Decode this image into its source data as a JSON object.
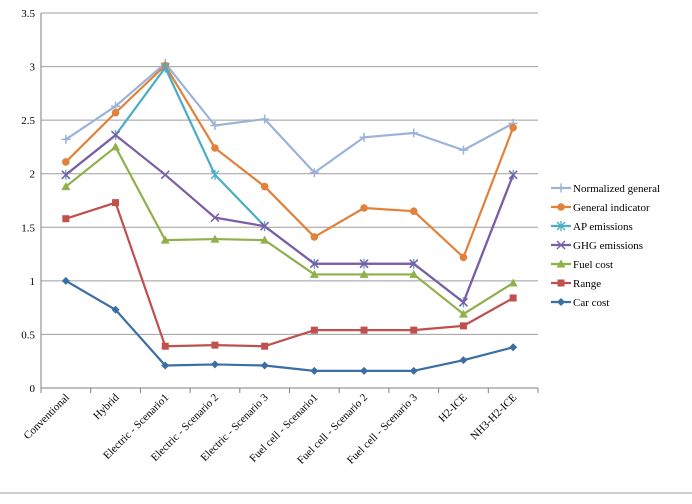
{
  "chart_data": {
    "type": "line",
    "title": "",
    "xlabel": "",
    "ylabel": "",
    "ylim": [
      0,
      3.5
    ],
    "yticks": [
      "0",
      "0.5",
      "1",
      "1.5",
      "2",
      "2.5",
      "3",
      "3.5"
    ],
    "grid": true,
    "legend_position": "right",
    "categories": [
      "Conventional",
      "Hybrid",
      "Electric - Scenario1",
      "Electric - Scenario 2",
      "Electric - Scenario 3",
      "Fuel cell - Scenario1",
      "Fuel cell - Scenario 2",
      "Fuel cell - Scenario 3",
      "H2-ICE",
      "NH3-H2-ICE"
    ],
    "series": [
      {
        "name": "Normalized general",
        "color": "#9bb3d9",
        "marker": "plus",
        "values": [
          2.32,
          2.63,
          3.03,
          2.45,
          2.51,
          2.01,
          2.34,
          2.38,
          2.22,
          2.47
        ]
      },
      {
        "name": "General indicator",
        "color": "#e2823a",
        "marker": "circle",
        "values": [
          2.11,
          2.57,
          3.01,
          2.24,
          1.88,
          1.41,
          1.68,
          1.65,
          1.22,
          2.43
        ]
      },
      {
        "name": "AP emissions",
        "color": "#4bacc6",
        "marker": "star",
        "values": [
          1.99,
          2.36,
          2.99,
          1.99,
          1.51,
          1.16,
          1.16,
          1.16,
          0.8,
          1.99
        ]
      },
      {
        "name": "GHG emissions",
        "color": "#7b5ea7",
        "marker": "x",
        "values": [
          1.99,
          2.36,
          1.99,
          1.59,
          1.51,
          1.16,
          1.16,
          1.16,
          0.8,
          1.99
        ]
      },
      {
        "name": "Fuel cost",
        "color": "#8fb04a",
        "marker": "triangle",
        "values": [
          1.88,
          2.25,
          1.38,
          1.39,
          1.38,
          1.06,
          1.06,
          1.06,
          0.69,
          0.98
        ]
      },
      {
        "name": "Range",
        "color": "#c0504d",
        "marker": "square",
        "values": [
          1.58,
          1.73,
          0.39,
          0.4,
          0.39,
          0.54,
          0.54,
          0.54,
          0.58,
          0.84
        ]
      },
      {
        "name": "Car cost",
        "color": "#3a6ea5",
        "marker": "diamond",
        "values": [
          1.0,
          0.73,
          0.21,
          0.22,
          0.21,
          0.16,
          0.16,
          0.16,
          0.26,
          0.38
        ]
      }
    ]
  }
}
